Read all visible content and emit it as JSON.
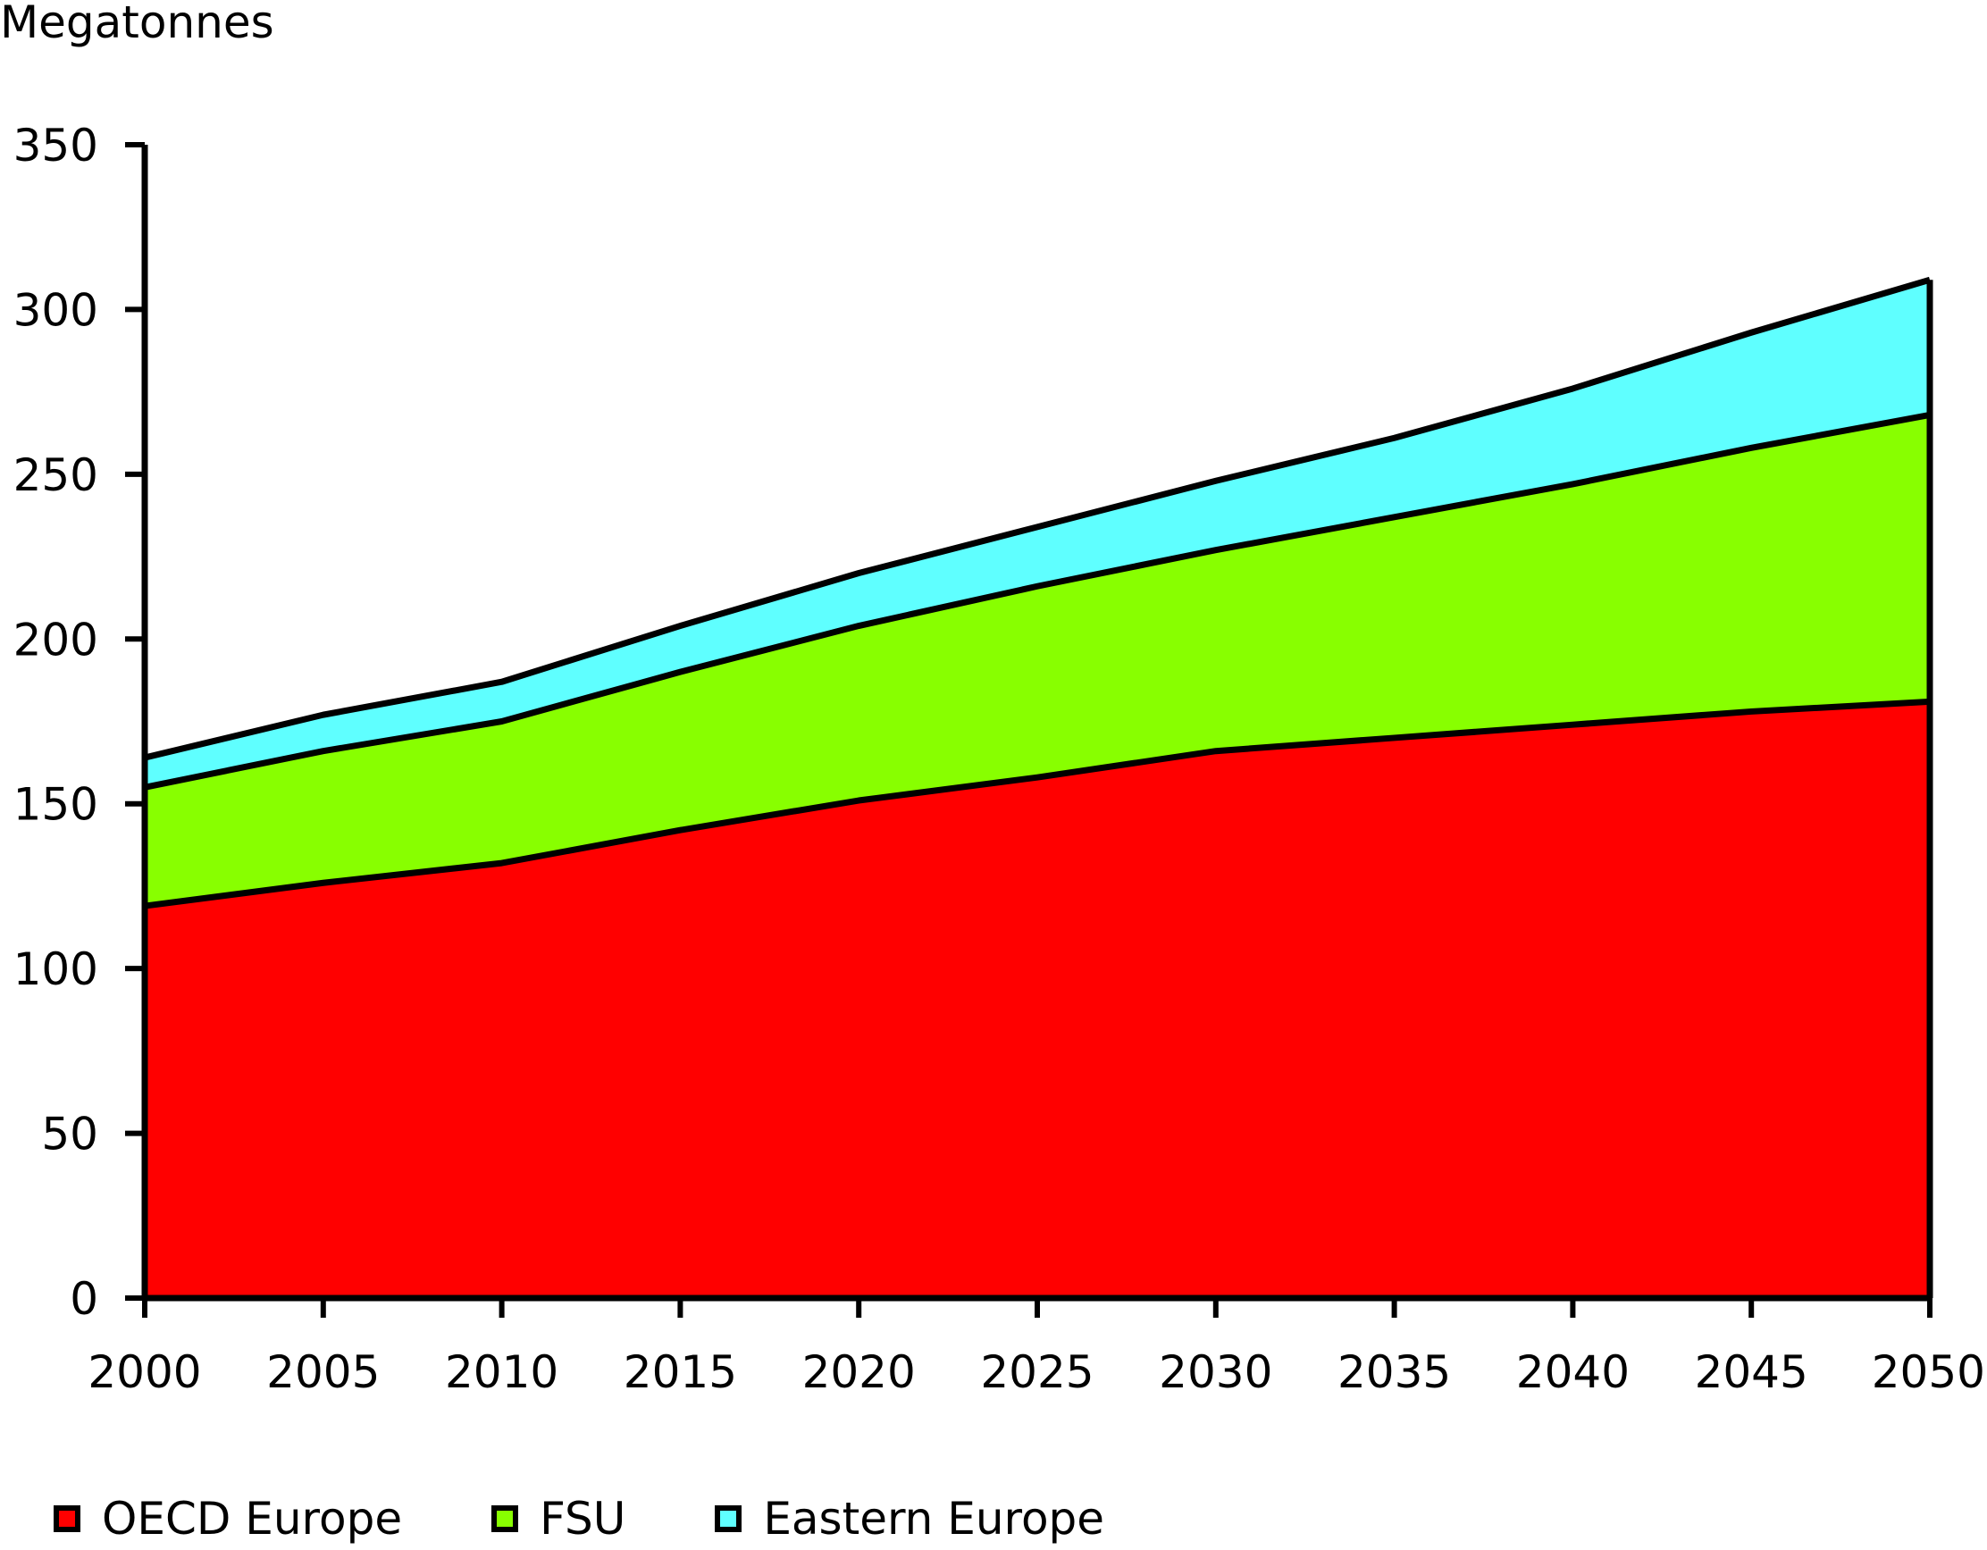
{
  "chart_data": {
    "type": "area",
    "stacked": true,
    "ylabel": "Megatonnes",
    "xlabel": "",
    "x": [
      2000,
      2005,
      2010,
      2015,
      2020,
      2025,
      2030,
      2035,
      2040,
      2045,
      2050
    ],
    "x_tick_labels": [
      "2000",
      "2005",
      "2010",
      "2015",
      "2020",
      "2025",
      "2030",
      "2035",
      "2040",
      "2045",
      "2050"
    ],
    "ylim": [
      0,
      350
    ],
    "y_ticks": [
      0,
      50,
      100,
      150,
      200,
      250,
      300,
      350
    ],
    "y_tick_labels": [
      "0",
      "50",
      "100",
      "150",
      "200",
      "250",
      "300",
      "350"
    ],
    "grid": false,
    "legend_position": "bottom",
    "series": [
      {
        "name": "OECD Europe",
        "color": "#ff0000",
        "values": [
          119,
          126,
          132,
          142,
          151,
          158,
          166,
          170,
          174,
          178,
          181
        ]
      },
      {
        "name": "FSU",
        "color": "#88ff00",
        "values": [
          36,
          40,
          43,
          48,
          53,
          58,
          61,
          67,
          73,
          80,
          87
        ]
      },
      {
        "name": "Eastern Europe",
        "color": "#5fffff",
        "values": [
          9,
          11,
          12,
          14,
          16,
          18,
          21,
          24,
          29,
          35,
          41
        ]
      }
    ]
  }
}
